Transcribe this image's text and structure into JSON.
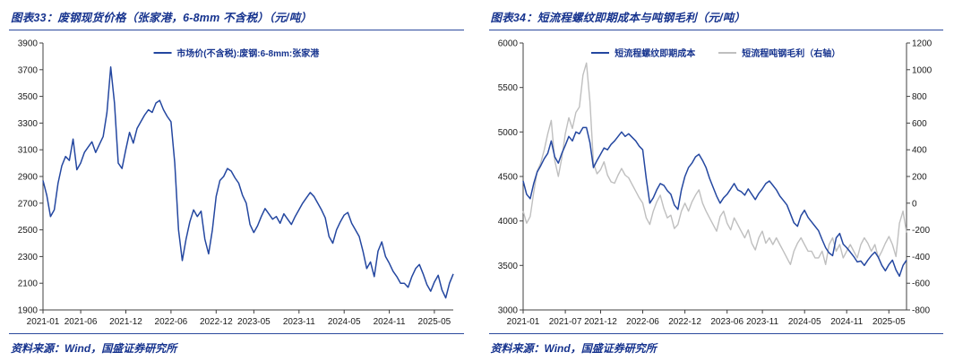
{
  "page": {
    "background": "#ffffff"
  },
  "footer": {
    "source": "资料来源：Wind，国盛证券研究所"
  },
  "colors": {
    "accent": "#16338e",
    "divider": "#2c4a9e",
    "blue_line": "#2447a0",
    "gray_line": "#bfbfbf",
    "axis": "#404040"
  },
  "chart_data": [
    {
      "type": "line",
      "title": "图表33：废钢现货价格（张家港，6-8mm 不含税）（元/吨）",
      "legend_position": "top-center",
      "grid": false,
      "left_axis": {
        "min": 1900,
        "max": 3900,
        "ticks": [
          1900,
          2100,
          2300,
          2500,
          2700,
          2900,
          3100,
          3300,
          3500,
          3700,
          3900
        ]
      },
      "xticks": [
        {
          "label": "2021-01",
          "pos": 0.0
        },
        {
          "label": "2021-06",
          "pos": 0.092
        },
        {
          "label": "2021-12",
          "pos": 0.202
        },
        {
          "label": "2022-06",
          "pos": 0.312
        },
        {
          "label": "2022-12",
          "pos": 0.422
        },
        {
          "label": "2023-05",
          "pos": 0.514
        },
        {
          "label": "2023-11",
          "pos": 0.624
        },
        {
          "label": "2024-05",
          "pos": 0.734
        },
        {
          "label": "2024-11",
          "pos": 0.844
        },
        {
          "label": "2025-05",
          "pos": 0.954
        }
      ],
      "series": [
        {
          "name": "市场价(不含税):废钢:6-8mm:张家港",
          "color": "#2447a0",
          "axis": "left",
          "width": 1.5,
          "values": [
            2870,
            2760,
            2600,
            2650,
            2850,
            2980,
            3050,
            3020,
            3180,
            2950,
            3000,
            3080,
            3120,
            3160,
            3080,
            3140,
            3200,
            3380,
            3720,
            3450,
            3000,
            2960,
            3100,
            3230,
            3150,
            3260,
            3310,
            3360,
            3400,
            3380,
            3450,
            3470,
            3400,
            3350,
            3310,
            3000,
            2500,
            2270,
            2430,
            2560,
            2650,
            2600,
            2640,
            2430,
            2320,
            2500,
            2750,
            2870,
            2900,
            2960,
            2940,
            2890,
            2850,
            2760,
            2700,
            2540,
            2480,
            2530,
            2600,
            2660,
            2620,
            2580,
            2600,
            2550,
            2620,
            2580,
            2540,
            2600,
            2650,
            2700,
            2740,
            2780,
            2750,
            2700,
            2650,
            2590,
            2450,
            2400,
            2500,
            2560,
            2610,
            2630,
            2550,
            2500,
            2450,
            2340,
            2210,
            2260,
            2150,
            2340,
            2410,
            2300,
            2250,
            2190,
            2150,
            2100,
            2100,
            2070,
            2150,
            2210,
            2240,
            2170,
            2090,
            2040,
            2110,
            2160,
            2050,
            1990,
            2100,
            2170
          ]
        }
      ]
    },
    {
      "type": "line",
      "title": "图表34：短流程螺纹即期成本与吨钢毛利（元/吨）",
      "legend_position": "top-center",
      "grid": false,
      "left_axis": {
        "min": 3000,
        "max": 6000,
        "ticks": [
          3000,
          3500,
          4000,
          4500,
          5000,
          5500,
          6000
        ]
      },
      "right_axis": {
        "min": -800,
        "max": 1200,
        "ticks": [
          -800,
          -600,
          -400,
          -200,
          0,
          200,
          400,
          600,
          800,
          1000,
          1200
        ]
      },
      "xticks": [
        {
          "label": "2021-01",
          "pos": 0.0
        },
        {
          "label": "2021-07",
          "pos": 0.11
        },
        {
          "label": "2021-12",
          "pos": 0.202
        },
        {
          "label": "2022-06",
          "pos": 0.312
        },
        {
          "label": "2022-12",
          "pos": 0.422
        },
        {
          "label": "2023-06",
          "pos": 0.532
        },
        {
          "label": "2023-11",
          "pos": 0.624
        },
        {
          "label": "2024-05",
          "pos": 0.734
        },
        {
          "label": "2024-11",
          "pos": 0.844
        },
        {
          "label": "2025-05",
          "pos": 0.954
        }
      ],
      "series": [
        {
          "name": "短流程螺纹即期成本",
          "color": "#2447a0",
          "axis": "left",
          "width": 1.5,
          "values": [
            4450,
            4300,
            4250,
            4420,
            4550,
            4620,
            4700,
            4760,
            4900,
            4720,
            4650,
            4760,
            4850,
            4950,
            4900,
            5000,
            4980,
            5050,
            5050,
            4880,
            4600,
            4680,
            4750,
            4820,
            4800,
            4860,
            4900,
            4950,
            5000,
            4950,
            4980,
            4940,
            4900,
            4840,
            4800,
            4480,
            4200,
            4260,
            4350,
            4420,
            4400,
            4340,
            4300,
            4180,
            4130,
            4350,
            4500,
            4600,
            4650,
            4720,
            4750,
            4680,
            4600,
            4480,
            4380,
            4280,
            4200,
            4260,
            4300,
            4360,
            4420,
            4350,
            4330,
            4290,
            4360,
            4300,
            4240,
            4310,
            4360,
            4420,
            4450,
            4400,
            4350,
            4280,
            4230,
            4180,
            4080,
            3980,
            3940,
            4060,
            4120,
            4040,
            3990,
            3940,
            3890,
            3790,
            3700,
            3640,
            3610,
            3810,
            3860,
            3740,
            3700,
            3650,
            3600,
            3540,
            3550,
            3500,
            3560,
            3610,
            3650,
            3590,
            3500,
            3440,
            3510,
            3560,
            3450,
            3380,
            3500,
            3560
          ]
        },
        {
          "name": "短流程吨钢毛利（右轴）",
          "color": "#bfbfbf",
          "axis": "right",
          "width": 1.4,
          "values": [
            -60,
            -150,
            -100,
            80,
            240,
            300,
            400,
            520,
            620,
            320,
            200,
            340,
            520,
            640,
            560,
            680,
            720,
            960,
            1050,
            760,
            300,
            220,
            250,
            310,
            210,
            160,
            150,
            210,
            260,
            210,
            190,
            140,
            90,
            40,
            0,
            -110,
            -160,
            -60,
            10,
            60,
            -40,
            -110,
            -90,
            -190,
            -160,
            -60,
            0,
            -60,
            10,
            60,
            100,
            0,
            -60,
            -110,
            -160,
            -210,
            -100,
            -60,
            -150,
            -200,
            -110,
            -160,
            -210,
            -260,
            -200,
            -300,
            -350,
            -260,
            -210,
            -300,
            -260,
            -310,
            -260,
            -310,
            -360,
            -410,
            -460,
            -360,
            -300,
            -260,
            -310,
            -360,
            -360,
            -410,
            -410,
            -360,
            -460,
            -310,
            -260,
            -360,
            -310,
            -410,
            -360,
            -310,
            -360,
            -410,
            -310,
            -260,
            -300,
            -360,
            -310,
            -410,
            -360,
            -300,
            -250,
            -310,
            -400,
            -150,
            -60,
            -220
          ]
        }
      ]
    }
  ]
}
